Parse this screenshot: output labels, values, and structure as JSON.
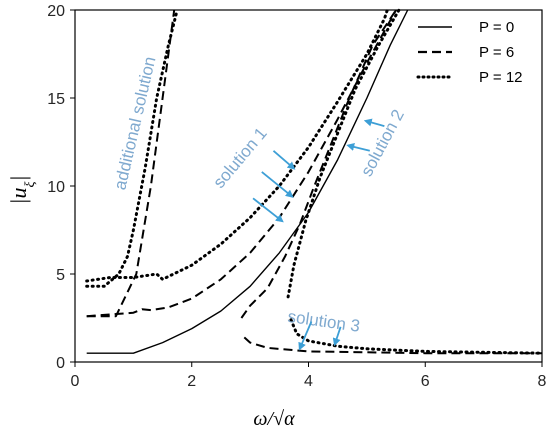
{
  "chart_data": {
    "type": "line",
    "xlabel": "ω/√α",
    "ylabel": "|u_ξ|",
    "xlim": [
      0,
      8
    ],
    "ylim": [
      0,
      20
    ],
    "xticks": [
      "0",
      "2",
      "4",
      "6",
      "8"
    ],
    "yticks": [
      "0",
      "5",
      "10",
      "15",
      "20"
    ],
    "grid": false,
    "legend_position": "top-right",
    "series": [
      {
        "name": "P = 0",
        "style": "solid",
        "color": "#000000",
        "segments": [
          [
            [
              0.2,
              0.5
            ],
            [
              1.0,
              0.5
            ],
            [
              1.5,
              1.1
            ],
            [
              2.0,
              1.9
            ],
            [
              2.5,
              2.9
            ],
            [
              3.0,
              4.3
            ],
            [
              3.5,
              6.2
            ],
            [
              4.0,
              8.5
            ],
            [
              4.5,
              11.5
            ],
            [
              5.0,
              15.0
            ],
            [
              5.4,
              18.0
            ],
            [
              5.7,
              20.0
            ]
          ]
        ]
      },
      {
        "name": "P = 6",
        "style": "dashed",
        "color": "#000000",
        "segments": [
          [
            [
              0.2,
              2.6
            ],
            [
              0.7,
              2.6
            ],
            [
              1.05,
              5.0
            ],
            [
              1.3,
              10.0
            ],
            [
              1.5,
              15.0
            ],
            [
              1.7,
              20.0
            ]
          ],
          [
            [
              0.2,
              2.6
            ],
            [
              0.6,
              2.7
            ],
            [
              1.0,
              2.8
            ],
            [
              1.15,
              3.0
            ],
            [
              1.3,
              2.95
            ],
            [
              1.6,
              3.1
            ],
            [
              2.0,
              3.6
            ],
            [
              2.5,
              4.7
            ],
            [
              3.0,
              6.2
            ],
            [
              3.5,
              8.2
            ],
            [
              4.0,
              10.8
            ],
            [
              4.5,
              13.8
            ],
            [
              5.0,
              17.0
            ],
            [
              5.5,
              20.0
            ]
          ],
          [
            [
              2.85,
              2.5
            ],
            [
              3.0,
              3.2
            ],
            [
              3.3,
              4.2
            ],
            [
              3.6,
              6.0
            ],
            [
              3.85,
              7.8
            ],
            [
              4.1,
              10.0
            ],
            [
              4.4,
              12.5
            ],
            [
              4.7,
              15.0
            ],
            [
              5.1,
              18.0
            ],
            [
              5.5,
              20.0
            ]
          ],
          [
            [
              2.9,
              1.4
            ],
            [
              3.0,
              1.1
            ],
            [
              3.3,
              0.8
            ],
            [
              4.0,
              0.6
            ],
            [
              5.0,
              0.55
            ],
            [
              6.0,
              0.5
            ],
            [
              8.0,
              0.5
            ]
          ]
        ]
      },
      {
        "name": "P = 12",
        "style": "dotted",
        "color": "#000000",
        "segments": [
          [
            [
              0.2,
              4.3
            ],
            [
              0.5,
              4.3
            ],
            [
              0.75,
              5.0
            ],
            [
              0.9,
              6.0
            ],
            [
              1.0,
              7.5
            ],
            [
              1.2,
              11.0
            ],
            [
              1.4,
              15.0
            ],
            [
              1.6,
              18.0
            ],
            [
              1.75,
              20.0
            ]
          ],
          [
            [
              0.2,
              4.6
            ],
            [
              0.6,
              4.8
            ],
            [
              1.0,
              4.8
            ],
            [
              1.4,
              5.0
            ],
            [
              1.5,
              4.7
            ],
            [
              2.0,
              5.5
            ],
            [
              2.5,
              6.7
            ],
            [
              3.0,
              8.2
            ],
            [
              3.5,
              10.0
            ],
            [
              4.0,
              12.2
            ],
            [
              4.5,
              14.8
            ],
            [
              5.0,
              17.5
            ],
            [
              5.3,
              19.5
            ],
            [
              5.35,
              20.0
            ]
          ],
          [
            [
              3.65,
              3.7
            ],
            [
              3.75,
              5.5
            ],
            [
              3.95,
              8.0
            ],
            [
              4.2,
              10.5
            ],
            [
              4.5,
              13.0
            ],
            [
              4.8,
              15.5
            ],
            [
              5.2,
              18.0
            ],
            [
              5.55,
              20.0
            ]
          ],
          [
            [
              3.7,
              2.4
            ],
            [
              3.8,
              1.6
            ],
            [
              4.0,
              1.2
            ],
            [
              4.5,
              0.9
            ],
            [
              5.0,
              0.75
            ],
            [
              6.0,
              0.6
            ],
            [
              7.0,
              0.55
            ],
            [
              8.0,
              0.5
            ]
          ]
        ]
      }
    ],
    "annotations": [
      {
        "text": "additional solution",
        "color": "#7fa9cf",
        "rotation": -77,
        "x": 1.12,
        "y": 13.5
      },
      {
        "text": "solution 1",
        "color": "#7fa9cf",
        "rotation": -50,
        "x": 2.9,
        "y": 11.4,
        "arrows": [
          [
            [
              3.4,
              12.0
            ],
            [
              3.75,
              11.0
            ]
          ],
          [
            [
              3.2,
              10.8
            ],
            [
              3.72,
              9.4
            ]
          ],
          [
            [
              3.05,
              9.3
            ],
            [
              3.55,
              8.0
            ]
          ]
        ]
      },
      {
        "text": "solution 2",
        "color": "#7fa9cf",
        "rotation": -62,
        "x": 5.35,
        "y": 12.3,
        "arrows": [
          [
            [
              5.3,
              13.4
            ],
            [
              4.98,
              13.7
            ]
          ],
          [
            [
              5.05,
              12.0
            ],
            [
              4.68,
              12.3
            ]
          ]
        ]
      },
      {
        "text": "solution 3",
        "color": "#7fa9cf",
        "rotation": 8,
        "x": 4.25,
        "y": 2.0,
        "arrows": [
          [
            [
              4.05,
              2.3
            ],
            [
              3.85,
              0.75
            ]
          ],
          [
            [
              4.55,
              2.0
            ],
            [
              4.45,
              1.0
            ]
          ]
        ]
      }
    ]
  }
}
